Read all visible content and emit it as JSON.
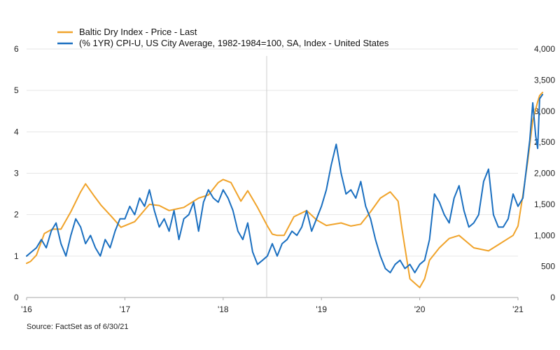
{
  "chart_data": {
    "type": "line",
    "source": "Source: FactSet as of 6/30/21",
    "x_ticks": [
      "'16",
      "'17",
      "'18",
      "'19",
      "'20",
      "'21"
    ],
    "y_left": {
      "ylim": [
        0,
        6
      ],
      "ticks": [
        "0",
        "1",
        "2",
        "3",
        "4",
        "5",
        "6"
      ]
    },
    "y_right": {
      "ylim": [
        0,
        4000
      ],
      "ticks": [
        "0",
        "500",
        "1,000",
        "1,500",
        "2,000",
        "2,500",
        "3,000",
        "3,500",
        "4,000"
      ]
    },
    "colors": {
      "bdi": "#f0a32a",
      "cpi": "#1a6fc0",
      "grid": "#e6e6e6",
      "axis": "#aaaaaa"
    },
    "series": [
      {
        "name": "Baltic Dry Index - Price - Last",
        "axis": "right",
        "color": "#f0a32a",
        "x": [
          2016.0,
          2016.04,
          2016.1,
          2016.18,
          2016.26,
          2016.35,
          2016.45,
          2016.55,
          2016.6,
          2016.68,
          2016.76,
          2016.86,
          2016.96,
          2017.1,
          2017.25,
          2017.35,
          2017.45,
          2017.6,
          2017.75,
          2017.85,
          2017.95,
          2018.0,
          2018.08,
          2018.18,
          2018.25,
          2018.35,
          2018.45,
          2018.5,
          2018.55,
          2018.62,
          2018.72,
          2018.85,
          2018.95,
          2019.05,
          2019.2,
          2019.3,
          2019.4,
          2019.5,
          2019.6,
          2019.7,
          2019.78,
          2019.82,
          2019.85,
          2019.9,
          2019.95,
          2020.0,
          2020.05,
          2020.1,
          2020.2,
          2020.3,
          2020.4,
          2020.55,
          2020.7,
          2020.8,
          2020.9,
          2020.95,
          2021.0,
          2021.05,
          2021.1,
          2021.15,
          2021.2,
          2021.22,
          2021.25
        ],
        "y": [
          550,
          580,
          680,
          1030,
          1100,
          1100,
          1380,
          1700,
          1830,
          1650,
          1480,
          1310,
          1130,
          1220,
          1500,
          1480,
          1400,
          1450,
          1600,
          1650,
          1850,
          1900,
          1850,
          1550,
          1720,
          1450,
          1150,
          1020,
          1000,
          1000,
          1300,
          1400,
          1250,
          1160,
          1200,
          1150,
          1180,
          1380,
          1600,
          1700,
          1550,
          1100,
          800,
          300,
          230,
          160,
          300,
          600,
          800,
          950,
          1000,
          800,
          750,
          850,
          950,
          1000,
          1150,
          1650,
          2200,
          2850,
          3150,
          3250,
          3300
        ]
      },
      {
        "name": "(% 1YR) CPI-U, US City Average, 1982-1984=100, SA, Index - United States",
        "axis": "left",
        "color": "#1a6fc0",
        "x": [
          2016.0,
          2016.05,
          2016.1,
          2016.15,
          2016.2,
          2016.25,
          2016.3,
          2016.35,
          2016.4,
          2016.45,
          2016.5,
          2016.55,
          2016.6,
          2016.65,
          2016.7,
          2016.75,
          2016.8,
          2016.85,
          2016.9,
          2016.95,
          2017.0,
          2017.05,
          2017.1,
          2017.15,
          2017.2,
          2017.25,
          2017.3,
          2017.35,
          2017.4,
          2017.45,
          2017.5,
          2017.55,
          2017.6,
          2017.65,
          2017.7,
          2017.75,
          2017.8,
          2017.85,
          2017.9,
          2017.95,
          2018.0,
          2018.05,
          2018.1,
          2018.15,
          2018.2,
          2018.25,
          2018.3,
          2018.35,
          2018.4,
          2018.45,
          2018.5,
          2018.55,
          2018.6,
          2018.65,
          2018.7,
          2018.75,
          2018.8,
          2018.85,
          2018.9,
          2018.95,
          2019.0,
          2019.05,
          2019.1,
          2019.15,
          2019.2,
          2019.25,
          2019.3,
          2019.35,
          2019.4,
          2019.45,
          2019.5,
          2019.55,
          2019.6,
          2019.65,
          2019.7,
          2019.75,
          2019.8,
          2019.85,
          2019.9,
          2019.95,
          2020.0,
          2020.05,
          2020.1,
          2020.15,
          2020.2,
          2020.25,
          2020.3,
          2020.35,
          2020.4,
          2020.45,
          2020.5,
          2020.55,
          2020.6,
          2020.65,
          2020.7,
          2020.75,
          2020.8,
          2020.85,
          2020.9,
          2020.95,
          2021.0,
          2021.05,
          2021.1,
          2021.12,
          2021.15,
          2021.18,
          2021.2,
          2021.22,
          2021.25
        ],
        "y": [
          1.0,
          1.1,
          1.2,
          1.4,
          1.2,
          1.6,
          1.8,
          1.3,
          1.0,
          1.5,
          1.9,
          1.7,
          1.3,
          1.5,
          1.2,
          1.0,
          1.4,
          1.2,
          1.6,
          1.9,
          1.9,
          2.2,
          2.0,
          2.4,
          2.2,
          2.6,
          2.1,
          1.7,
          1.9,
          1.6,
          2.1,
          1.4,
          1.9,
          2.0,
          2.3,
          1.6,
          2.3,
          2.6,
          2.4,
          2.3,
          2.6,
          2.4,
          2.1,
          1.6,
          1.4,
          1.8,
          1.1,
          0.8,
          0.9,
          1.0,
          1.3,
          1.0,
          1.3,
          1.4,
          1.6,
          1.5,
          1.7,
          2.1,
          1.6,
          1.9,
          2.2,
          2.6,
          3.2,
          3.7,
          3.0,
          2.5,
          2.6,
          2.4,
          2.8,
          2.2,
          1.9,
          1.4,
          1.0,
          0.7,
          0.6,
          0.8,
          0.9,
          0.7,
          0.8,
          0.6,
          0.8,
          0.9,
          1.4,
          2.5,
          2.3,
          2.0,
          1.8,
          2.4,
          2.7,
          2.1,
          1.7,
          1.8,
          2.0,
          2.8,
          3.1,
          2.0,
          1.7,
          1.7,
          1.9,
          2.5,
          2.2,
          2.4,
          3.4,
          3.8,
          4.7,
          3.9,
          3.6,
          4.8,
          4.9
        ]
      }
    ]
  }
}
